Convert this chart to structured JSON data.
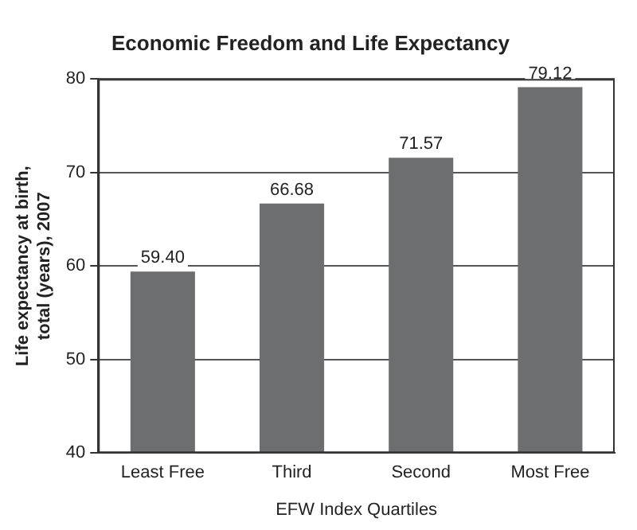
{
  "chart_data": {
    "type": "bar",
    "title": "Economic Freedom and Life Expectancy",
    "xlabel": "EFW Index Quartiles",
    "ylabel": "Life expectancy at birth, total (years), 2007",
    "categories": [
      "Least Free",
      "Third",
      "Second",
      "Most Free"
    ],
    "values": [
      59.4,
      66.68,
      71.57,
      79.12
    ],
    "value_labels": [
      "59.40",
      "66.68",
      "71.57",
      "79.12"
    ],
    "color": "#6d6e70",
    "ylim": [
      40,
      80
    ],
    "yticks": [
      40,
      50,
      60,
      70,
      80
    ],
    "grid": "y",
    "legend": false
  }
}
